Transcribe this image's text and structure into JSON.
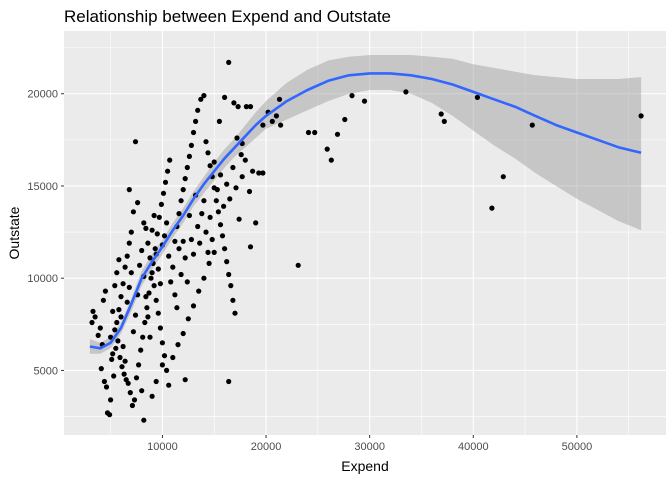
{
  "chart_data": {
    "type": "scatter",
    "title": "Relationship between Expend and Outstate",
    "xlabel": "Expend",
    "ylabel": "Outstate",
    "xlim": [
      500,
      58600
    ],
    "ylim": [
      1500,
      23400
    ],
    "x_ticks": [
      10000,
      20000,
      30000,
      40000,
      50000
    ],
    "x_tick_labels": [
      "10000",
      "20000",
      "30000",
      "40000",
      "50000"
    ],
    "y_ticks": [
      5000,
      10000,
      15000,
      20000
    ],
    "y_tick_labels": [
      "5000",
      "10000",
      "15000",
      "20000"
    ],
    "grid": true,
    "colors": {
      "panel": "#ebebeb",
      "grid": "#ffffff",
      "point": "#000000",
      "smooth": "#3366ff",
      "band": "#999999"
    },
    "points": [
      [
        3200,
        7600
      ],
      [
        3500,
        7900
      ],
      [
        3800,
        6900
      ],
      [
        3300,
        8200
      ],
      [
        4000,
        7300
      ],
      [
        4200,
        6400
      ],
      [
        4300,
        8800
      ],
      [
        4500,
        9300
      ],
      [
        4100,
        5100
      ],
      [
        4400,
        4400
      ],
      [
        4600,
        4100
      ],
      [
        4700,
        2700
      ],
      [
        4900,
        2600
      ],
      [
        5000,
        3400
      ],
      [
        5100,
        5600
      ],
      [
        5300,
        4700
      ],
      [
        5500,
        6200
      ],
      [
        5600,
        7600
      ],
      [
        5800,
        8300
      ],
      [
        6000,
        9000
      ],
      [
        6200,
        9700
      ],
      [
        6400,
        10600
      ],
      [
        6600,
        11200
      ],
      [
        6800,
        11900
      ],
      [
        7000,
        12500
      ],
      [
        5200,
        8200
      ],
      [
        5400,
        7200
      ],
      [
        5700,
        6600
      ],
      [
        5900,
        5700
      ],
      [
        6100,
        5200
      ],
      [
        6300,
        4800
      ],
      [
        6500,
        4500
      ],
      [
        6700,
        4300
      ],
      [
        6900,
        3800
      ],
      [
        7100,
        3100
      ],
      [
        7300,
        3400
      ],
      [
        7500,
        4600
      ],
      [
        7700,
        5300
      ],
      [
        7900,
        6100
      ],
      [
        8100,
        6800
      ],
      [
        8300,
        7600
      ],
      [
        8500,
        8400
      ],
      [
        8700,
        9200
      ],
      [
        8900,
        10000
      ],
      [
        9100,
        10800
      ],
      [
        9300,
        11600
      ],
      [
        9500,
        12400
      ],
      [
        9700,
        13300
      ],
      [
        9900,
        14000
      ],
      [
        10100,
        14600
      ],
      [
        10300,
        15200
      ],
      [
        10500,
        15800
      ],
      [
        10700,
        16400
      ],
      [
        7400,
        17400
      ],
      [
        7600,
        14100
      ],
      [
        7200,
        13600
      ],
      [
        6800,
        14800
      ],
      [
        8200,
        13000
      ],
      [
        8400,
        12700
      ],
      [
        8600,
        11900
      ],
      [
        8800,
        11100
      ],
      [
        9000,
        10300
      ],
      [
        9200,
        9600
      ],
      [
        9400,
        8800
      ],
      [
        9600,
        8100
      ],
      [
        9800,
        7300
      ],
      [
        10000,
        6500
      ],
      [
        10200,
        5800
      ],
      [
        10400,
        5000
      ],
      [
        10600,
        4200
      ],
      [
        8000,
        3900
      ],
      [
        8200,
        2300
      ],
      [
        9000,
        3600
      ],
      [
        9400,
        4400
      ],
      [
        10000,
        5300
      ],
      [
        11000,
        5700
      ],
      [
        11500,
        6400
      ],
      [
        12000,
        7000
      ],
      [
        12500,
        7800
      ],
      [
        13000,
        8500
      ],
      [
        13500,
        9300
      ],
      [
        14000,
        10000
      ],
      [
        14500,
        10800
      ],
      [
        15000,
        11400
      ],
      [
        11200,
        12000
      ],
      [
        11400,
        12800
      ],
      [
        11600,
        13500
      ],
      [
        11800,
        14200
      ],
      [
        12000,
        14800
      ],
      [
        12200,
        15400
      ],
      [
        12400,
        16000
      ],
      [
        12600,
        16600
      ],
      [
        12800,
        17200
      ],
      [
        13000,
        17900
      ],
      [
        13200,
        18500
      ],
      [
        13400,
        19100
      ],
      [
        13700,
        19700
      ],
      [
        14000,
        19900
      ],
      [
        14200,
        17400
      ],
      [
        14400,
        16800
      ],
      [
        14600,
        16100
      ],
      [
        14800,
        15500
      ],
      [
        15000,
        14900
      ],
      [
        15200,
        14200
      ],
      [
        15400,
        13600
      ],
      [
        15600,
        12900
      ],
      [
        15800,
        12300
      ],
      [
        16000,
        11600
      ],
      [
        16200,
        10900
      ],
      [
        16400,
        10200
      ],
      [
        16600,
        9600
      ],
      [
        16800,
        8800
      ],
      [
        17000,
        8100
      ],
      [
        12200,
        4500
      ],
      [
        16400,
        4400
      ],
      [
        15500,
        18500
      ],
      [
        16000,
        19800
      ],
      [
        16400,
        21700
      ],
      [
        16900,
        19500
      ],
      [
        17300,
        19300
      ],
      [
        17700,
        17300
      ],
      [
        18100,
        19300
      ],
      [
        18500,
        19300
      ],
      [
        17200,
        17600
      ],
      [
        17600,
        16700
      ],
      [
        18000,
        16400
      ],
      [
        18400,
        14700
      ],
      [
        18700,
        15800
      ],
      [
        19000,
        13000
      ],
      [
        19300,
        15700
      ],
      [
        19700,
        15700
      ],
      [
        19700,
        18300
      ],
      [
        20200,
        19000
      ],
      [
        20600,
        18500
      ],
      [
        21000,
        18800
      ],
      [
        21300,
        19700
      ],
      [
        21400,
        18300
      ],
      [
        18500,
        11700
      ],
      [
        23100,
        10700
      ],
      [
        24100,
        17900
      ],
      [
        24700,
        17900
      ],
      [
        25900,
        17000
      ],
      [
        26300,
        16400
      ],
      [
        26900,
        17800
      ],
      [
        27600,
        18600
      ],
      [
        28300,
        19900
      ],
      [
        29500,
        19600
      ],
      [
        33500,
        20100
      ],
      [
        36900,
        18900
      ],
      [
        37200,
        18500
      ],
      [
        40400,
        19800
      ],
      [
        41800,
        13800
      ],
      [
        42900,
        15500
      ],
      [
        45700,
        18300
      ],
      [
        56200,
        18800
      ],
      [
        5000,
        6800
      ],
      [
        5200,
        5900
      ],
      [
        5400,
        9600
      ],
      [
        5600,
        10300
      ],
      [
        5800,
        11000
      ],
      [
        6000,
        7900
      ],
      [
        6200,
        6300
      ],
      [
        6400,
        5500
      ],
      [
        6600,
        8700
      ],
      [
        6800,
        9500
      ],
      [
        7000,
        10300
      ],
      [
        7200,
        7100
      ],
      [
        7400,
        8000
      ],
      [
        7600,
        9100
      ],
      [
        7800,
        10700
      ],
      [
        8000,
        11500
      ],
      [
        8200,
        10100
      ],
      [
        8400,
        9000
      ],
      [
        8600,
        7900
      ],
      [
        8800,
        6800
      ],
      [
        9000,
        12600
      ],
      [
        9200,
        13400
      ],
      [
        9400,
        11300
      ],
      [
        9600,
        10500
      ],
      [
        9800,
        9700
      ],
      [
        10000,
        11800
      ],
      [
        10200,
        12300
      ],
      [
        10400,
        13000
      ],
      [
        10600,
        11200
      ],
      [
        10800,
        9800
      ],
      [
        11000,
        10600
      ],
      [
        11200,
        9100
      ],
      [
        11400,
        8400
      ],
      [
        11600,
        11600
      ],
      [
        11800,
        10200
      ],
      [
        12000,
        12000
      ],
      [
        12200,
        11100
      ],
      [
        12400,
        9800
      ],
      [
        12600,
        13400
      ],
      [
        12800,
        12100
      ],
      [
        13000,
        11300
      ],
      [
        13200,
        14500
      ],
      [
        13400,
        12800
      ],
      [
        13600,
        11900
      ],
      [
        13800,
        13500
      ],
      [
        14000,
        14200
      ],
      [
        14200,
        12500
      ],
      [
        14400,
        11400
      ],
      [
        14600,
        13300
      ],
      [
        14800,
        12100
      ],
      [
        15000,
        16300
      ],
      [
        15300,
        14800
      ],
      [
        15600,
        15600
      ],
      [
        15900,
        13900
      ],
      [
        16200,
        15100
      ],
      [
        16500,
        14300
      ],
      [
        16800,
        16000
      ],
      [
        17100,
        14900
      ],
      [
        17400,
        13200
      ],
      [
        17700,
        15500
      ]
    ],
    "smooth": {
      "x": [
        3000,
        4000,
        5000,
        6000,
        7000,
        8000,
        9000,
        10000,
        11000,
        12000,
        13000,
        14000,
        15000,
        16000,
        17000,
        18000,
        19000,
        20000,
        22000,
        24000,
        26000,
        28000,
        30000,
        32000,
        34000,
        36000,
        38000,
        40000,
        42000,
        44000,
        46000,
        48000,
        50000,
        52000,
        54000,
        56200
      ],
      "y": [
        6300,
        6200,
        6500,
        7300,
        8600,
        10000,
        10900,
        11700,
        12600,
        13400,
        14300,
        15100,
        15800,
        16500,
        17100,
        17700,
        18300,
        18800,
        19600,
        20200,
        20700,
        21000,
        21100,
        21100,
        21000,
        20800,
        20500,
        20100,
        19700,
        19300,
        18800,
        18300,
        17900,
        17500,
        17100,
        16800
      ],
      "lower": [
        5900,
        5900,
        6200,
        7000,
        8200,
        9600,
        10500,
        11300,
        12200,
        13000,
        13900,
        14600,
        15300,
        16000,
        16600,
        17100,
        17600,
        18100,
        18600,
        19100,
        19600,
        20000,
        20200,
        20200,
        20000,
        19500,
        18800,
        18000,
        17200,
        16500,
        15700,
        15000,
        14300,
        13700,
        13100,
        12600
      ],
      "upper": [
        6700,
        6500,
        6800,
        7600,
        8900,
        10400,
        11300,
        12100,
        13000,
        13800,
        14700,
        15500,
        16300,
        17000,
        17600,
        18300,
        19000,
        19600,
        20600,
        21300,
        21800,
        22000,
        22100,
        22100,
        22100,
        22000,
        21900,
        21600,
        21400,
        21200,
        21000,
        20900,
        20800,
        20800,
        20800,
        20900
      ]
    }
  }
}
